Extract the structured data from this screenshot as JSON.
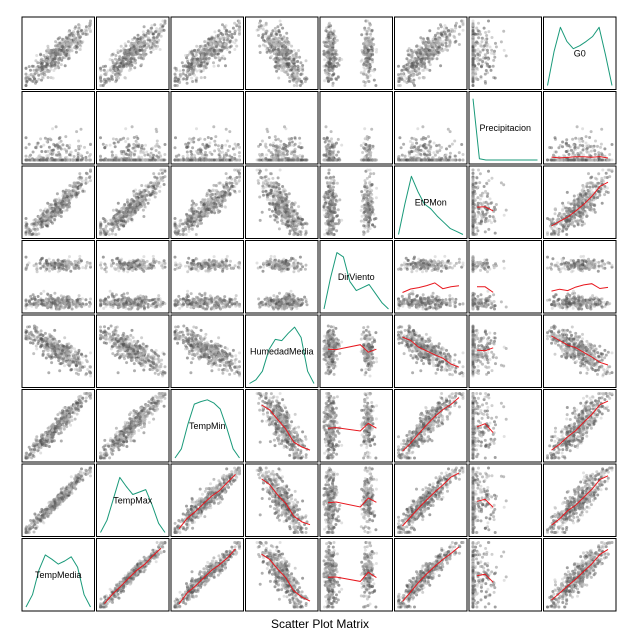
{
  "chart_data": {
    "type": "scatter",
    "title": "Scatter Plot Matrix",
    "variables": [
      "TempMedia",
      "TempMax",
      "TempMin",
      "HumedadMedia",
      "DirViento",
      "EtPMon",
      "Precipitacion",
      "G0"
    ],
    "layout": "diagonal runs bottom-left to top-right; lower-right triangle panels include smoother lines",
    "scale": "standardized units (0 to 1 per variable)",
    "colors": {
      "density": "#1a9a7a",
      "smoother": "#e8161d",
      "point_light": "#c8c8c8",
      "point_dark": "#141414",
      "border": "#000000"
    },
    "pair_trends": [
      {
        "x": "TempMedia",
        "y": "TempMax",
        "relation": "strong positive linear"
      },
      {
        "x": "TempMedia",
        "y": "TempMin",
        "relation": "strong positive linear"
      },
      {
        "x": "TempMedia",
        "y": "HumedadMedia",
        "relation": "negative"
      },
      {
        "x": "TempMedia",
        "y": "EtPMon",
        "relation": "positive curved"
      },
      {
        "x": "TempMedia",
        "y": "G0",
        "relation": "positive"
      },
      {
        "x": "HumedadMedia",
        "y": "EtPMon",
        "relation": "negative"
      },
      {
        "x": "EtPMon",
        "y": "G0",
        "relation": "positive curved"
      },
      {
        "x": "DirViento",
        "y": "all",
        "relation": "two vertical bands"
      },
      {
        "x": "Precipitacion",
        "y": "all",
        "relation": "mass at zero"
      }
    ],
    "densities": {
      "TempMedia": [
        0.0,
        0.2,
        0.6,
        0.85,
        0.78,
        0.7,
        0.75,
        0.82,
        0.65,
        0.2,
        0.0
      ],
      "TempMax": [
        0.0,
        0.2,
        0.55,
        0.9,
        0.75,
        0.62,
        0.66,
        0.7,
        0.45,
        0.15,
        0.0
      ],
      "TempMin": [
        0.0,
        0.15,
        0.55,
        0.88,
        0.92,
        0.95,
        0.9,
        0.8,
        0.5,
        0.15,
        0.0
      ],
      "HumedadMedia": [
        0.0,
        0.06,
        0.2,
        0.55,
        0.72,
        0.7,
        0.82,
        0.92,
        0.75,
        0.2,
        0.0
      ],
      "DirViento": [
        0.0,
        0.5,
        0.92,
        0.85,
        0.45,
        0.3,
        0.35,
        0.4,
        0.25,
        0.1,
        0.0
      ],
      "EtPMon": [
        0.0,
        0.5,
        0.95,
        0.7,
        0.5,
        0.42,
        0.3,
        0.2,
        0.1,
        0.05,
        0.0
      ],
      "Precipitacion": [
        1.0,
        0.02,
        0.0,
        0.0,
        0.0,
        0.0,
        0.0,
        0.0,
        0.0,
        0.0,
        0.0
      ],
      "G0": [
        0.0,
        0.55,
        0.95,
        0.72,
        0.6,
        0.65,
        0.72,
        0.8,
        0.95,
        0.5,
        0.0
      ]
    }
  }
}
